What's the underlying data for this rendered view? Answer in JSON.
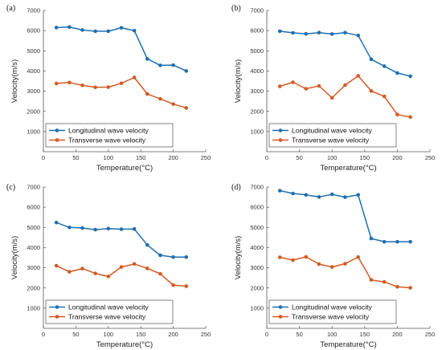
{
  "colors": {
    "longitudinal": "#1f6fb0",
    "transverse": "#d45a24",
    "axis": "#555555"
  },
  "chart_data": [
    {
      "type": "line",
      "panel_label": "(a)",
      "xlabel": "Temperature(°C)",
      "ylabel": "Velocity(m/s)",
      "xlim": [
        0,
        250
      ],
      "ylim": [
        0,
        7000
      ],
      "xticks": [
        0,
        50,
        100,
        150,
        200,
        250
      ],
      "yticks": [
        1000,
        2000,
        3000,
        4000,
        5000,
        6000,
        7000
      ],
      "legend_position": "bottom-left",
      "x": [
        20,
        40,
        60,
        80,
        100,
        120,
        140,
        160,
        180,
        200,
        220
      ],
      "series": [
        {
          "name": "Longitudinal wave velocity",
          "values": [
            6150,
            6180,
            6030,
            5970,
            5970,
            6140,
            6000,
            4600,
            4280,
            4290,
            4000
          ]
        },
        {
          "name": "Transverse wave velocity",
          "values": [
            3380,
            3430,
            3290,
            3190,
            3200,
            3390,
            3680,
            2860,
            2620,
            2360,
            2170
          ]
        }
      ]
    },
    {
      "type": "line",
      "panel_label": "(b)",
      "xlabel": "Temperature(°C)",
      "ylabel": "Velocity(m/s)",
      "xlim": [
        0,
        250
      ],
      "ylim": [
        0,
        7000
      ],
      "xticks": [
        0,
        50,
        100,
        150,
        200,
        250
      ],
      "yticks": [
        1000,
        2000,
        3000,
        4000,
        5000,
        6000,
        7000
      ],
      "legend_position": "bottom-left",
      "x": [
        20,
        40,
        60,
        80,
        100,
        120,
        140,
        160,
        180,
        200,
        220
      ],
      "series": [
        {
          "name": "Longitudinal wave velocity",
          "values": [
            5970,
            5890,
            5840,
            5900,
            5830,
            5900,
            5760,
            4580,
            4240,
            3900,
            3740
          ]
        },
        {
          "name": "Transverse wave velocity",
          "values": [
            3240,
            3440,
            3120,
            3260,
            2670,
            3300,
            3760,
            3010,
            2740,
            1840,
            1720
          ]
        }
      ]
    },
    {
      "type": "line",
      "panel_label": "(c)",
      "xlabel": "Temperature(°C)",
      "ylabel": "Velocity(m/s)",
      "xlim": [
        0,
        250
      ],
      "ylim": [
        0,
        7000
      ],
      "xticks": [
        0,
        50,
        100,
        150,
        200,
        250
      ],
      "yticks": [
        1000,
        2000,
        3000,
        4000,
        5000,
        6000,
        7000
      ],
      "legend_position": "bottom-left",
      "x": [
        20,
        40,
        60,
        80,
        100,
        120,
        140,
        160,
        180,
        200,
        220
      ],
      "series": [
        {
          "name": "Longitudinal wave velocity",
          "values": [
            5240,
            5000,
            4970,
            4890,
            4940,
            4910,
            4920,
            4130,
            3620,
            3530,
            3530
          ]
        },
        {
          "name": "Transverse wave velocity",
          "values": [
            3100,
            2800,
            2960,
            2720,
            2570,
            3040,
            3190,
            2970,
            2700,
            2140,
            2090
          ]
        }
      ]
    },
    {
      "type": "line",
      "panel_label": "(d)",
      "xlabel": "Temperature(°C)",
      "ylabel": "Velocity(m/s)",
      "xlim": [
        0,
        250
      ],
      "ylim": [
        0,
        7000
      ],
      "xticks": [
        0,
        50,
        100,
        150,
        200,
        250
      ],
      "yticks": [
        1000,
        2000,
        3000,
        4000,
        5000,
        6000,
        7000
      ],
      "legend_position": "bottom-left",
      "x": [
        20,
        40,
        60,
        80,
        100,
        120,
        140,
        160,
        180,
        200,
        220
      ],
      "series": [
        {
          "name": "Longitudinal wave velocity",
          "values": [
            6820,
            6680,
            6610,
            6510,
            6640,
            6500,
            6610,
            4450,
            4290,
            4290,
            4290
          ]
        },
        {
          "name": "Transverse wave velocity",
          "values": [
            3520,
            3380,
            3540,
            3180,
            3040,
            3200,
            3530,
            2400,
            2300,
            2060,
            2010
          ]
        }
      ]
    }
  ]
}
